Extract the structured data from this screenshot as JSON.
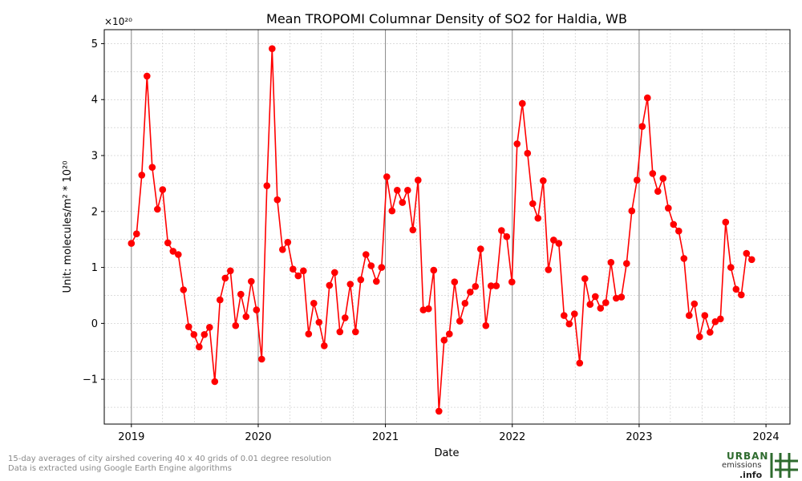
{
  "chart_data": {
    "type": "line",
    "title": "Mean TROPOMI Columnar Density of SO2 for Haldia, WB",
    "xlabel": "Date",
    "ylabel": "Unit: molecules/m² * 10²⁰",
    "y_multiplier": "×10²⁰",
    "xlim": [
      "2018-10-15",
      "2024-03-10"
    ],
    "ylim": [
      -1.8,
      5.25
    ],
    "x_ticks": [
      "2019",
      "2020",
      "2021",
      "2022",
      "2023",
      "2024"
    ],
    "y_ticks": [
      -1,
      0,
      1,
      2,
      3,
      4,
      5
    ],
    "y_tick_labels": [
      "−1",
      "0",
      "1",
      "2",
      "3",
      "4",
      "5"
    ],
    "grid": true,
    "year_lines": true,
    "series_color": "#ff0000",
    "series": [
      {
        "x": [
          "2019-01-01",
          "2019-01-16",
          "2019-01-31",
          "2019-02-15",
          "2019-03-02",
          "2019-03-17",
          "2019-04-01",
          "2019-04-16",
          "2019-05-01",
          "2019-05-16",
          "2019-05-31",
          "2019-06-15",
          "2019-06-30",
          "2019-07-15",
          "2019-07-30",
          "2019-08-14",
          "2019-08-29",
          "2019-09-13",
          "2019-09-28",
          "2019-10-13",
          "2019-10-28",
          "2019-11-12",
          "2019-11-27",
          "2019-12-12",
          "2019-12-27",
          "2020-01-11",
          "2020-01-26",
          "2020-02-10",
          "2020-02-25",
          "2020-03-11",
          "2020-03-26",
          "2020-04-10",
          "2020-04-25",
          "2020-05-10",
          "2020-05-25",
          "2020-06-09",
          "2020-06-24",
          "2020-07-09",
          "2020-07-24",
          "2020-08-08",
          "2020-08-23",
          "2020-09-07",
          "2020-09-22",
          "2020-10-07",
          "2020-10-22",
          "2020-11-06",
          "2020-11-21",
          "2020-12-06",
          "2020-12-21",
          "2021-01-05",
          "2021-01-20",
          "2021-02-04",
          "2021-02-19",
          "2021-03-06",
          "2021-03-21",
          "2021-04-05",
          "2021-04-20",
          "2021-05-05",
          "2021-05-20",
          "2021-06-04",
          "2021-06-19",
          "2021-07-04",
          "2021-07-19",
          "2021-08-03",
          "2021-08-18",
          "2021-09-02",
          "2021-09-17",
          "2021-10-02",
          "2021-10-17",
          "2021-11-01",
          "2021-11-16",
          "2021-12-01",
          "2021-12-16",
          "2021-12-31",
          "2022-01-15",
          "2022-01-30",
          "2022-02-14",
          "2022-03-01",
          "2022-03-16",
          "2022-03-31",
          "2022-04-15",
          "2022-04-30",
          "2022-05-15",
          "2022-05-30",
          "2022-06-14",
          "2022-06-29",
          "2022-07-14",
          "2022-07-29",
          "2022-08-13",
          "2022-08-28",
          "2022-09-12",
          "2022-09-27",
          "2022-10-12",
          "2022-10-27",
          "2022-11-11",
          "2022-11-26",
          "2022-12-11",
          "2022-12-26",
          "2023-01-10",
          "2023-01-25",
          "2023-02-09",
          "2023-02-24",
          "2023-03-11",
          "2023-03-26",
          "2023-04-10",
          "2023-04-25",
          "2023-05-10",
          "2023-05-25",
          "2023-06-09",
          "2023-06-24",
          "2023-07-09",
          "2023-07-24",
          "2023-08-08",
          "2023-08-23",
          "2023-09-07",
          "2023-09-22",
          "2023-10-07",
          "2023-10-22",
          "2023-11-06",
          "2023-11-21"
        ],
        "y": [
          1.43,
          1.6,
          2.65,
          4.42,
          2.79,
          2.04,
          2.39,
          1.44,
          1.29,
          1.23,
          0.6,
          -0.06,
          -0.2,
          -0.42,
          -0.2,
          -0.07,
          -1.04,
          0.42,
          0.81,
          0.94,
          -0.04,
          0.52,
          0.12,
          0.75,
          0.24,
          -0.64,
          2.46,
          4.91,
          2.21,
          1.32,
          1.45,
          0.97,
          0.85,
          0.94,
          -0.19,
          0.36,
          0.02,
          -0.4,
          0.68,
          0.91,
          -0.15,
          0.1,
          0.7,
          -0.15,
          0.78,
          1.23,
          1.03,
          0.75,
          1.0,
          2.62,
          2.01,
          2.38,
          2.16,
          2.38,
          1.67,
          2.56,
          0.24,
          0.26,
          0.95,
          -1.57,
          -0.3,
          -0.19,
          0.74,
          0.04,
          0.36,
          0.56,
          0.66,
          1.33,
          -0.04,
          0.67,
          0.67,
          1.66,
          1.55,
          0.74,
          3.21,
          3.93,
          3.04,
          2.14,
          1.88,
          2.55,
          0.96,
          1.49,
          1.43,
          0.14,
          -0.01,
          0.17,
          -0.71,
          0.8,
          0.34,
          0.48,
          0.27,
          0.37,
          1.09,
          0.45,
          0.47,
          1.07,
          2.01,
          2.56,
          3.52,
          4.03,
          2.68,
          2.36,
          2.59,
          2.06,
          1.77,
          1.65,
          1.16,
          0.14,
          0.35,
          -0.24,
          0.14,
          -0.16,
          0.03,
          0.08,
          1.81,
          1.0,
          0.61,
          0.51,
          1.25,
          1.14
        ]
      }
    ]
  },
  "footnote": {
    "line1": "15-day averages of city airshed covering 40 x 40 grids of 0.01 degree resolution",
    "line2": "Data is extracted using Google Earth Engine algorithms"
  },
  "logo": {
    "line1": "URBAN",
    "line2": "emissions",
    "line3": ".info",
    "color": "#2e6b2e"
  }
}
